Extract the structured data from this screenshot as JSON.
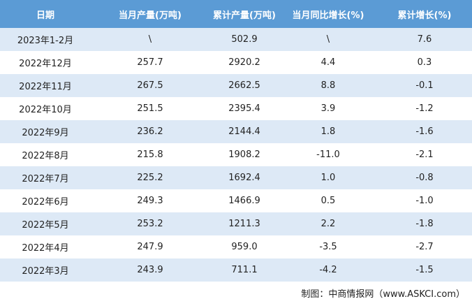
{
  "table": {
    "header": [
      "日期",
      "当月产量(万吨)",
      "累计产量(万吨)",
      "当月同比增长(%)",
      "累计增长(%)"
    ],
    "rows": [
      [
        "2023年1-2月",
        "\\",
        "502.9",
        "\\",
        "7.6"
      ],
      [
        "2022年12月",
        "257.7",
        "2920.2",
        "4.4",
        "0.3"
      ],
      [
        "2022年11月",
        "267.5",
        "2662.5",
        "8.8",
        "-0.1"
      ],
      [
        "2022年10月",
        "251.5",
        "2395.4",
        "3.9",
        "-1.2"
      ],
      [
        "2022年9月",
        "236.2",
        "2144.4",
        "1.8",
        "-1.6"
      ],
      [
        "2022年8月",
        "215.8",
        "1908.2",
        "-11.0",
        "-2.1"
      ],
      [
        "2022年7月",
        "225.2",
        "1692.4",
        "1.0",
        "-0.8"
      ],
      [
        "2022年6月",
        "249.3",
        "1466.9",
        "0.5",
        "-1.0"
      ],
      [
        "2022年5月",
        "253.2",
        "1211.3",
        "2.2",
        "-1.8"
      ],
      [
        "2022年4月",
        "247.9",
        "959.0",
        "-3.5",
        "-2.7"
      ],
      [
        "2022年3月",
        "243.9",
        "711.1",
        "-4.2",
        "-1.5"
      ]
    ]
  },
  "footer": "制图：中商情报网（www.ASKCI.com）"
}
